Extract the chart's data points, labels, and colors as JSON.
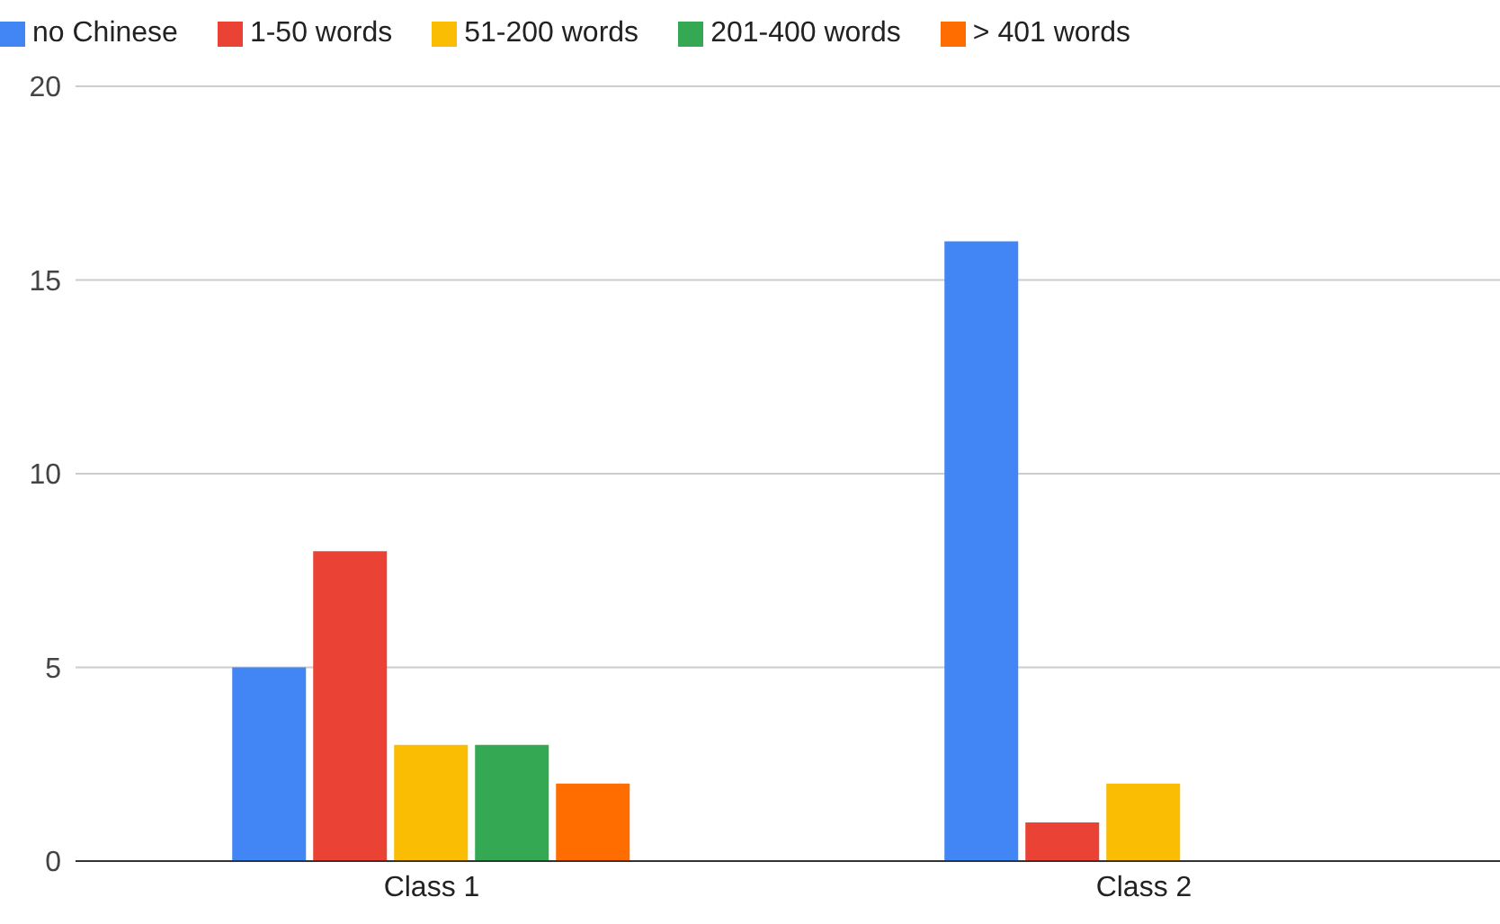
{
  "chart_data": {
    "type": "bar",
    "categories": [
      "Class 1",
      "Class 2"
    ],
    "series": [
      {
        "name": "no Chinese",
        "color": "#4285f4",
        "values": [
          5,
          16
        ]
      },
      {
        "name": "1-50 words",
        "color": "#ea4335",
        "values": [
          8,
          1
        ]
      },
      {
        "name": "51-200 words",
        "color": "#fbbc04",
        "values": [
          3,
          2
        ]
      },
      {
        "name": "201-400 words",
        "color": "#34a853",
        "values": [
          3,
          0
        ]
      },
      {
        "name": "> 401 words",
        "color": "#ff6d01",
        "values": [
          2,
          0
        ]
      }
    ],
    "ylim": [
      0,
      20
    ],
    "yticks": [
      0,
      5,
      10,
      15,
      20
    ],
    "grid": "y",
    "legend": "top left"
  }
}
